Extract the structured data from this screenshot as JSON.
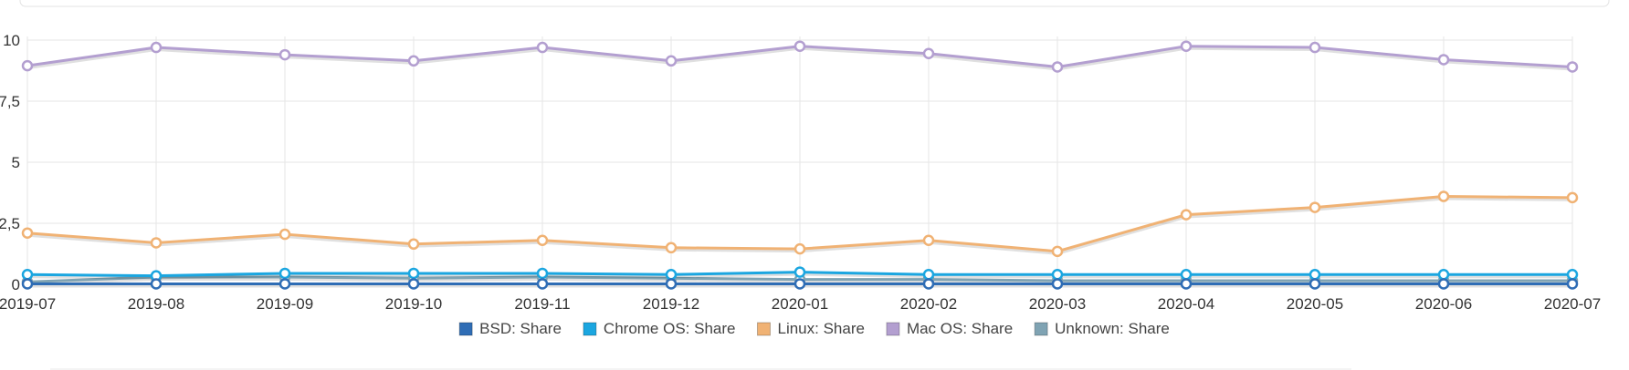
{
  "chart_data": {
    "type": "line",
    "categories": [
      "2019-07",
      "2019-08",
      "2019-09",
      "2019-10",
      "2019-11",
      "2019-12",
      "2020-01",
      "2020-02",
      "2020-03",
      "2020-04",
      "2020-05",
      "2020-06",
      "2020-07"
    ],
    "y_ticks": [
      {
        "value": 0,
        "label": "0"
      },
      {
        "value": 2.5,
        "label": "2,5"
      },
      {
        "value": 5,
        "label": "5"
      },
      {
        "value": 7.5,
        "label": "7,5"
      },
      {
        "value": 10,
        "label": "10"
      }
    ],
    "ylim": [
      0,
      10
    ],
    "grid": true,
    "legend_position": "bottom",
    "series": [
      {
        "id": "bsd",
        "name": "BSD: Share",
        "color": "#2f6db5",
        "values": [
          0.02,
          0.02,
          0.02,
          0.02,
          0.02,
          0.02,
          0.02,
          0.02,
          0.02,
          0.02,
          0.02,
          0.02,
          0.02
        ]
      },
      {
        "id": "chromeos",
        "name": "Chrome OS: Share",
        "color": "#1ba6e0",
        "values": [
          0.4,
          0.35,
          0.45,
          0.45,
          0.45,
          0.4,
          0.5,
          0.4,
          0.4,
          0.4,
          0.4,
          0.4,
          0.4
        ]
      },
      {
        "id": "linux",
        "name": "Linux: Share",
        "color": "#f0b274",
        "values": [
          2.1,
          1.7,
          2.05,
          1.65,
          1.8,
          1.5,
          1.45,
          1.8,
          1.35,
          2.85,
          3.15,
          3.6,
          3.55
        ]
      },
      {
        "id": "macos",
        "name": "Mac OS: Share",
        "color": "#b39fd0",
        "values": [
          8.95,
          9.7,
          9.4,
          9.15,
          9.7,
          9.15,
          9.75,
          9.45,
          8.9,
          9.75,
          9.7,
          9.2,
          8.9
        ]
      },
      {
        "id": "unknown",
        "name": "Unknown: Share",
        "color": "#7fa3b3",
        "values": [
          0.1,
          0.3,
          0.3,
          0.25,
          0.3,
          0.25,
          0.2,
          0.2,
          0.15,
          0.15,
          0.15,
          0.15,
          0.15
        ]
      }
    ]
  }
}
